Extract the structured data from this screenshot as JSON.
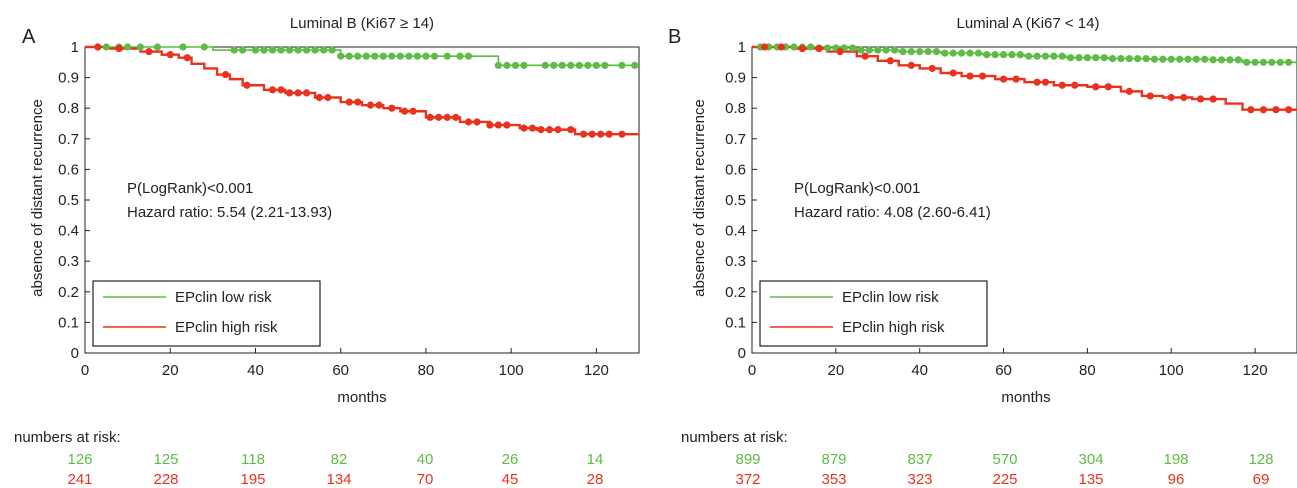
{
  "figure": {
    "risk_table_label": "numbers at risk:"
  },
  "chart_data": [
    {
      "panel_letter": "A",
      "type": "line",
      "title": "Luminal B (Ki67 ≥ 14)",
      "xlabel": "months",
      "ylabel": "absence of distant recurrence",
      "xlim": [
        0,
        130
      ],
      "ylim": [
        0,
        1
      ],
      "xticks": [
        0,
        20,
        40,
        60,
        80,
        100,
        120
      ],
      "yticks": [
        0,
        0.1,
        0.2,
        0.3,
        0.4,
        0.5,
        0.6,
        0.7,
        0.8,
        0.9,
        1
      ],
      "ytick_labels": [
        "0",
        "0.1",
        "0.2",
        "0.3",
        "0.4",
        "0.5",
        "0.6",
        "0.7",
        "0.8",
        "0.9",
        "1"
      ],
      "grid": false,
      "legend_position": "bottom-left",
      "annotations": [
        "P(LogRank)<0.001",
        "Hazard ratio: 5.54 (2.21-13.93)"
      ],
      "series": [
        {
          "name": "EPclin low risk",
          "color": "#5dbb46",
          "x": [
            0,
            30,
            60,
            97,
            130
          ],
          "y": [
            1.0,
            0.99,
            0.97,
            0.94,
            0.94
          ],
          "censor_x": [
            3,
            5,
            8,
            10,
            13,
            17,
            23,
            28,
            35,
            37,
            40,
            42,
            44,
            46,
            48,
            50,
            52,
            54,
            56,
            58,
            60,
            62,
            64,
            66,
            68,
            70,
            72,
            74,
            76,
            78,
            80,
            82,
            85,
            88,
            90,
            97,
            99,
            101,
            103,
            108,
            110,
            112,
            114,
            116,
            118,
            120,
            122,
            126,
            129
          ]
        },
        {
          "name": "EPclin high risk",
          "color": "#e8321e",
          "x": [
            0,
            5,
            13,
            18,
            22,
            25,
            28,
            31,
            34,
            37,
            42,
            47,
            54,
            60,
            65,
            70,
            74,
            80,
            88,
            95,
            102,
            106,
            115,
            130
          ],
          "y": [
            1.0,
            0.995,
            0.985,
            0.975,
            0.965,
            0.945,
            0.93,
            0.91,
            0.895,
            0.875,
            0.86,
            0.85,
            0.835,
            0.82,
            0.81,
            0.8,
            0.79,
            0.77,
            0.755,
            0.745,
            0.735,
            0.73,
            0.715,
            0.715
          ],
          "censor_x": [
            3,
            8,
            15,
            20,
            24,
            33,
            38,
            44,
            46,
            48,
            50,
            52,
            55,
            57,
            62,
            64,
            67,
            69,
            72,
            75,
            77,
            81,
            83,
            85,
            87,
            90,
            92,
            95,
            97,
            99,
            103,
            105,
            107,
            109,
            111,
            114,
            117,
            119,
            121,
            123,
            126
          ]
        }
      ],
      "numbers_at_risk": {
        "low_risk": [
          "126",
          "125",
          "118",
          "82",
          "40",
          "26",
          "14"
        ],
        "high_risk": [
          "241",
          "228",
          "195",
          "134",
          "70",
          "45",
          "28"
        ]
      }
    },
    {
      "panel_letter": "B",
      "type": "line",
      "title": "Luminal A (Ki67 < 14)",
      "xlabel": "months",
      "ylabel": "absence of distant recurrence",
      "xlim": [
        0,
        130
      ],
      "ylim": [
        0,
        1
      ],
      "xticks": [
        0,
        20,
        40,
        60,
        80,
        100,
        120
      ],
      "yticks": [
        0,
        0.1,
        0.2,
        0.3,
        0.4,
        0.5,
        0.6,
        0.7,
        0.8,
        0.9,
        1
      ],
      "ytick_labels": [
        "0",
        "0.1",
        "0.2",
        "0.3",
        "0.4",
        "0.5",
        "0.6",
        "0.7",
        "0.8",
        "0.9",
        "1"
      ],
      "grid": false,
      "legend_position": "bottom-left",
      "annotations": [
        "P(LogRank)<0.001",
        "Hazard ratio: 4.08 (2.60-6.41)"
      ],
      "series": [
        {
          "name": "EPclin low risk",
          "color": "#5dbb46",
          "x": [
            0,
            15,
            25,
            35,
            45,
            55,
            65,
            75,
            85,
            95,
            110,
            117,
            130
          ],
          "y": [
            1.0,
            0.997,
            0.99,
            0.985,
            0.98,
            0.975,
            0.97,
            0.965,
            0.962,
            0.96,
            0.958,
            0.95,
            0.95
          ],
          "censor_x": [
            2,
            4,
            6,
            8,
            10,
            12,
            14,
            16,
            18,
            20,
            22,
            24,
            26,
            28,
            30,
            32,
            34,
            36,
            38,
            40,
            42,
            44,
            46,
            48,
            50,
            52,
            54,
            56,
            58,
            60,
            62,
            64,
            66,
            68,
            70,
            72,
            74,
            76,
            78,
            80,
            82,
            84,
            86,
            88,
            90,
            92,
            94,
            96,
            98,
            100,
            102,
            104,
            106,
            108,
            110,
            112,
            114,
            116,
            118,
            120,
            122,
            124,
            126,
            128
          ]
        },
        {
          "name": "EPclin high risk",
          "color": "#e8321e",
          "x": [
            0,
            10,
            18,
            25,
            30,
            35,
            40,
            45,
            50,
            58,
            65,
            72,
            80,
            88,
            93,
            98,
            105,
            113,
            117,
            130
          ],
          "y": [
            1.0,
            0.995,
            0.985,
            0.97,
            0.955,
            0.94,
            0.93,
            0.915,
            0.905,
            0.895,
            0.885,
            0.875,
            0.87,
            0.855,
            0.84,
            0.835,
            0.83,
            0.815,
            0.795,
            0.795
          ],
          "censor_x": [
            3,
            7,
            12,
            16,
            21,
            27,
            33,
            38,
            43,
            48,
            52,
            55,
            60,
            63,
            68,
            70,
            74,
            77,
            82,
            85,
            90,
            95,
            100,
            103,
            107,
            110,
            119,
            122,
            125,
            128
          ]
        }
      ],
      "numbers_at_risk": {
        "low_risk": [
          "899",
          "879",
          "837",
          "570",
          "304",
          "198",
          "128"
        ],
        "high_risk": [
          "372",
          "353",
          "323",
          "225",
          "135",
          "96",
          "69"
        ]
      }
    }
  ]
}
